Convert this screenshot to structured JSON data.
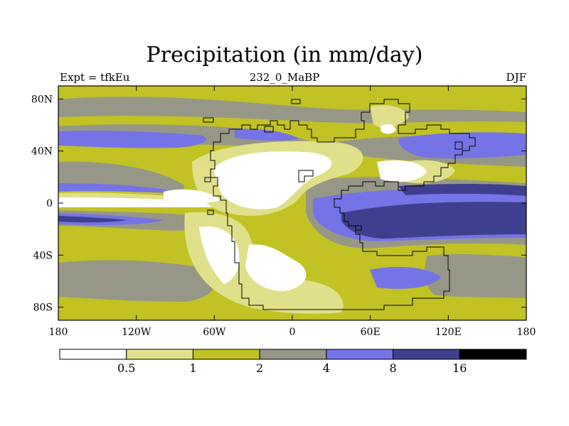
{
  "title": "Precipitation (in mm/day)",
  "left_label": "Expt = tfkEu",
  "center_label": "232_0_MaBP",
  "right_label": "DJF",
  "map": {
    "y_ticks": [
      {
        "label": "80N",
        "lat": 80
      },
      {
        "label": "40N",
        "lat": 40
      },
      {
        "label": "0",
        "lat": 0
      },
      {
        "label": "40S",
        "lat": -40
      },
      {
        "label": "80S",
        "lat": -80
      }
    ],
    "x_ticks": [
      {
        "label": "180",
        "lon": -180
      },
      {
        "label": "120W",
        "lon": -120
      },
      {
        "label": "60W",
        "lon": -60
      },
      {
        "label": "0",
        "lon": 0
      },
      {
        "label": "60E",
        "lon": 60
      },
      {
        "label": "120E",
        "lon": 120
      },
      {
        "label": "180",
        "lon": 180
      }
    ],
    "lon_range": [
      -180,
      180
    ],
    "lat_range": [
      -90,
      90
    ]
  },
  "colorbar": {
    "levels": [
      "0.5",
      "1",
      "2",
      "4",
      "8",
      "16"
    ],
    "colors": [
      "#ffffff",
      "#e0e08a",
      "#c2c224",
      "#979787",
      "#7474e6",
      "#3f3f8f",
      "#000000"
    ]
  }
}
